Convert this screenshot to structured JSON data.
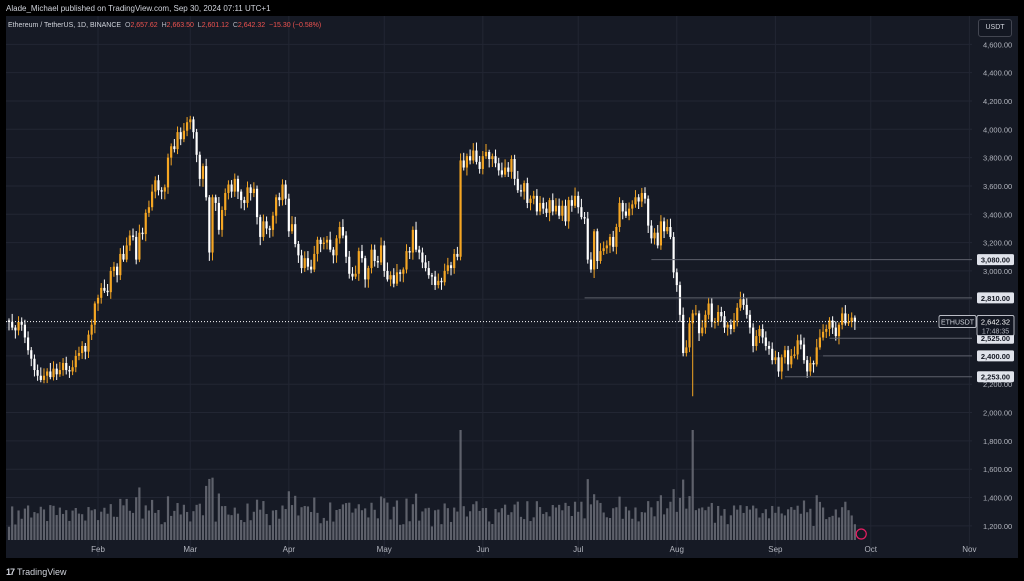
{
  "header": {
    "published": "Alade_Michael published on TradingView.com, Sep 30, 2024 07:11 UTC+1"
  },
  "legend": {
    "symbol": "Ethereum / TetherUS, 1D, BINANCE",
    "o_label": "O",
    "o_value": "2,657.62",
    "h_label": "H",
    "h_value": "2,663.50",
    "l_label": "L",
    "l_value": "2,601.12",
    "c_label": "C",
    "c_value": "2,642.32",
    "change": "−15.30 (−0.58%)"
  },
  "currency_button": "USDT",
  "footer": {
    "brand": "TradingView",
    "logo_glyph": "17"
  },
  "colors": {
    "background": "#161a25",
    "bull": "#f5a623",
    "bear": "#ffffff",
    "volume": "#6b6e78",
    "level_line": "#5d606b",
    "price_line": "#ffffff"
  },
  "chart_data": {
    "type": "candlestick",
    "symbol": "ETHUSDT",
    "exchange": "BINANCE",
    "timeframe": "1D",
    "ylim": [
      1100,
      4800
    ],
    "y_ticks": [
      1200,
      1400,
      1600,
      1800,
      2000,
      2200,
      2400,
      2600,
      2800,
      3000,
      3200,
      3400,
      3600,
      3800,
      4000,
      4200,
      4400,
      4600
    ],
    "y_tick_labels": [
      "1,200.00",
      "1,400.00",
      "1,600.00",
      "1,800.00",
      "2,000.00",
      "2,200.00",
      "2,400.00",
      "2,600.00",
      "2,800.00",
      "3,000.00",
      "3,200.00",
      "3,400.00",
      "3,600.00",
      "3,800.00",
      "4,000.00",
      "4,200.00",
      "4,400.00",
      "4,600.00"
    ],
    "x_labels": [
      {
        "label": "Feb",
        "day": 28
      },
      {
        "label": "Mar",
        "day": 57
      },
      {
        "label": "Apr",
        "day": 88
      },
      {
        "label": "May",
        "day": 118
      },
      {
        "label": "Jun",
        "day": 149
      },
      {
        "label": "Jul",
        "day": 179
      },
      {
        "label": "Aug",
        "day": 210
      },
      {
        "label": "Sep",
        "day": 241
      },
      {
        "label": "Oct",
        "day": 271
      },
      {
        "label": "Nov",
        "day": 302
      }
    ],
    "horizontal_levels": [
      {
        "price": 3080,
        "label": "3,080.00",
        "from_day": 202
      },
      {
        "price": 2810,
        "label": "2,810.00",
        "from_day": 181
      },
      {
        "price": 2525,
        "label": "2,525.00",
        "from_day": 258
      },
      {
        "price": 2400,
        "label": "2,400.00",
        "from_day": 256
      },
      {
        "price": 2253,
        "label": "2,253.00",
        "from_day": 244
      }
    ],
    "current_price": {
      "symbol_tag": "ETHUSDT",
      "price": 2642.32,
      "label": "2,642.32",
      "countdown": "17:48:35"
    },
    "closes": [
      2640,
      2600,
      2580,
      2640,
      2620,
      2530,
      2440,
      2380,
      2300,
      2260,
      2230,
      2260,
      2290,
      2250,
      2310,
      2270,
      2300,
      2350,
      2300,
      2290,
      2320,
      2400,
      2420,
      2470,
      2430,
      2550,
      2620,
      2770,
      2810,
      2880,
      2860,
      2850,
      3000,
      3030,
      2970,
      3120,
      3080,
      3180,
      3250,
      3240,
      3080,
      3270,
      3260,
      3410,
      3450,
      3560,
      3640,
      3570,
      3560,
      3590,
      3800,
      3880,
      3860,
      3980,
      3930,
      3990,
      4050,
      4070,
      3980,
      3820,
      3650,
      3740,
      3520,
      3130,
      3520,
      3480,
      3290,
      3430,
      3550,
      3610,
      3560,
      3650,
      3560,
      3500,
      3480,
      3590,
      3550,
      3580,
      3380,
      3240,
      3350,
      3300,
      3290,
      3390,
      3520,
      3500,
      3610,
      3510,
      3280,
      3330,
      3190,
      3110,
      3020,
      3090,
      3030,
      3010,
      3120,
      3220,
      3190,
      3200,
      3220,
      3150,
      3110,
      3230,
      3310,
      3250,
      3100,
      2980,
      2960,
      2980,
      3140,
      3090,
      2940,
      3020,
      3150,
      3070,
      3060,
      3180,
      3000,
      2940,
      2970,
      2910,
      2990,
      2980,
      3010,
      3140,
      3130,
      3290,
      3150,
      3130,
      3060,
      3020,
      2970,
      2960,
      2900,
      2930,
      2920,
      3000,
      3040,
      3020,
      3120,
      3100,
      3780,
      3730,
      3810,
      3780,
      3850,
      3770,
      3720,
      3810,
      3840,
      3790,
      3810,
      3760,
      3710,
      3680,
      3730,
      3700,
      3790,
      3650,
      3570,
      3560,
      3620,
      3480,
      3510,
      3530,
      3420,
      3480,
      3440,
      3410,
      3500,
      3420,
      3460,
      3390,
      3460,
      3350,
      3500,
      3460,
      3530,
      3450,
      3380,
      3370,
      3080,
      3010,
      3280,
      3070,
      3140,
      3160,
      3180,
      3240,
      3170,
      3310,
      3480,
      3420,
      3390,
      3440,
      3470,
      3520,
      3490,
      3550,
      3510,
      3320,
      3230,
      3270,
      3180,
      3350,
      3280,
      3310,
      3240,
      2990,
      2900,
      2690,
      2420,
      2460,
      2630,
      2700,
      2700,
      2560,
      2600,
      2690,
      2770,
      2640,
      2640,
      2710,
      2680,
      2600,
      2620,
      2590,
      2650,
      2740,
      2800,
      2760,
      2690,
      2600,
      2470,
      2540,
      2590,
      2530,
      2470,
      2450,
      2370,
      2390,
      2290,
      2390,
      2440,
      2340,
      2400,
      2410,
      2510,
      2480,
      2370,
      2290,
      2350,
      2340,
      2460,
      2530,
      2570,
      2590,
      2650,
      2600,
      2540,
      2620,
      2700,
      2630,
      2640,
      2670,
      2642.32
    ]
  }
}
